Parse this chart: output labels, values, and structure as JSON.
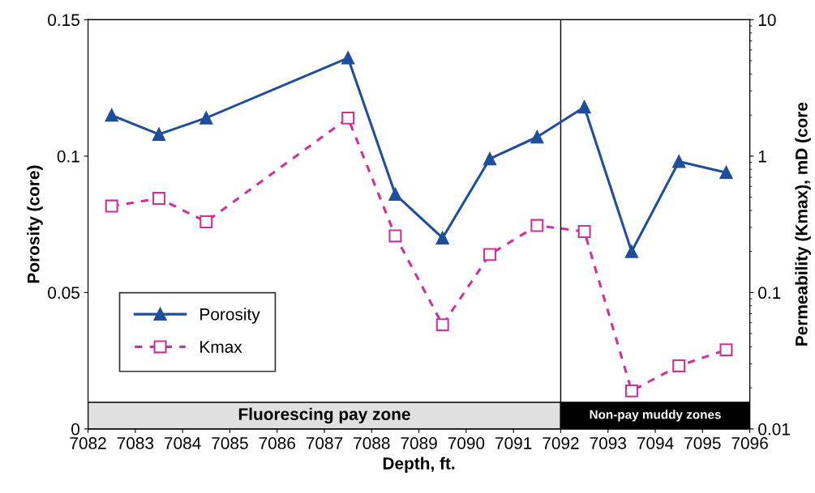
{
  "chart_data": {
    "type": "line",
    "xlabel": "Depth, ft.",
    "ylabel": "Porosity (core)",
    "y2label": "Permeability (Kmax), mD (core",
    "xlim": [
      7082,
      7096
    ],
    "xticks": [
      7082,
      7083,
      7084,
      7085,
      7086,
      7087,
      7088,
      7089,
      7090,
      7091,
      7092,
      7093,
      7094,
      7095,
      7096
    ],
    "ylim": [
      0,
      0.15
    ],
    "yticks": [
      0,
      0.05,
      0.1,
      0.15
    ],
    "y2lim": [
      0.01,
      10
    ],
    "y2ticks": [
      0.01,
      0.1,
      1,
      10
    ],
    "log": "y2",
    "grid": false,
    "legend": "bottom left",
    "x": [
      7082.5,
      7083.5,
      7084.5,
      7087.5,
      7088.5,
      7089.5,
      7090.5,
      7091.5,
      7092.5,
      7093.5,
      7094.5,
      7095.5
    ],
    "series": [
      {
        "name": "Porosity",
        "color": "#1f4e9c",
        "marker": "triangle",
        "line_style": "solid",
        "values": [
          0.115,
          0.108,
          0.114,
          0.136,
          0.086,
          0.07,
          0.099,
          0.107,
          0.118,
          0.065,
          0.098,
          0.094
        ]
      },
      {
        "name": "Kmax",
        "color": "#cc3399",
        "marker": "square",
        "line_style": "dashed",
        "axis": "y2",
        "values": [
          0.43,
          0.49,
          0.33,
          1.9,
          0.26,
          0.058,
          0.19,
          0.31,
          0.28,
          0.019,
          0.029,
          0.038
        ]
      }
    ],
    "ref_lines": [
      {
        "axis": "x",
        "value": 7092,
        "color": "#000000"
      }
    ],
    "bands": [
      {
        "axis": "x",
        "from": 7082,
        "to": 7092,
        "label": "Fluorescing pay zone",
        "color": "#e0e0e0"
      },
      {
        "axis": "x",
        "from": 7092,
        "to": 7096,
        "label": "Non-pay muddy zones",
        "color": "#000000"
      }
    ]
  }
}
